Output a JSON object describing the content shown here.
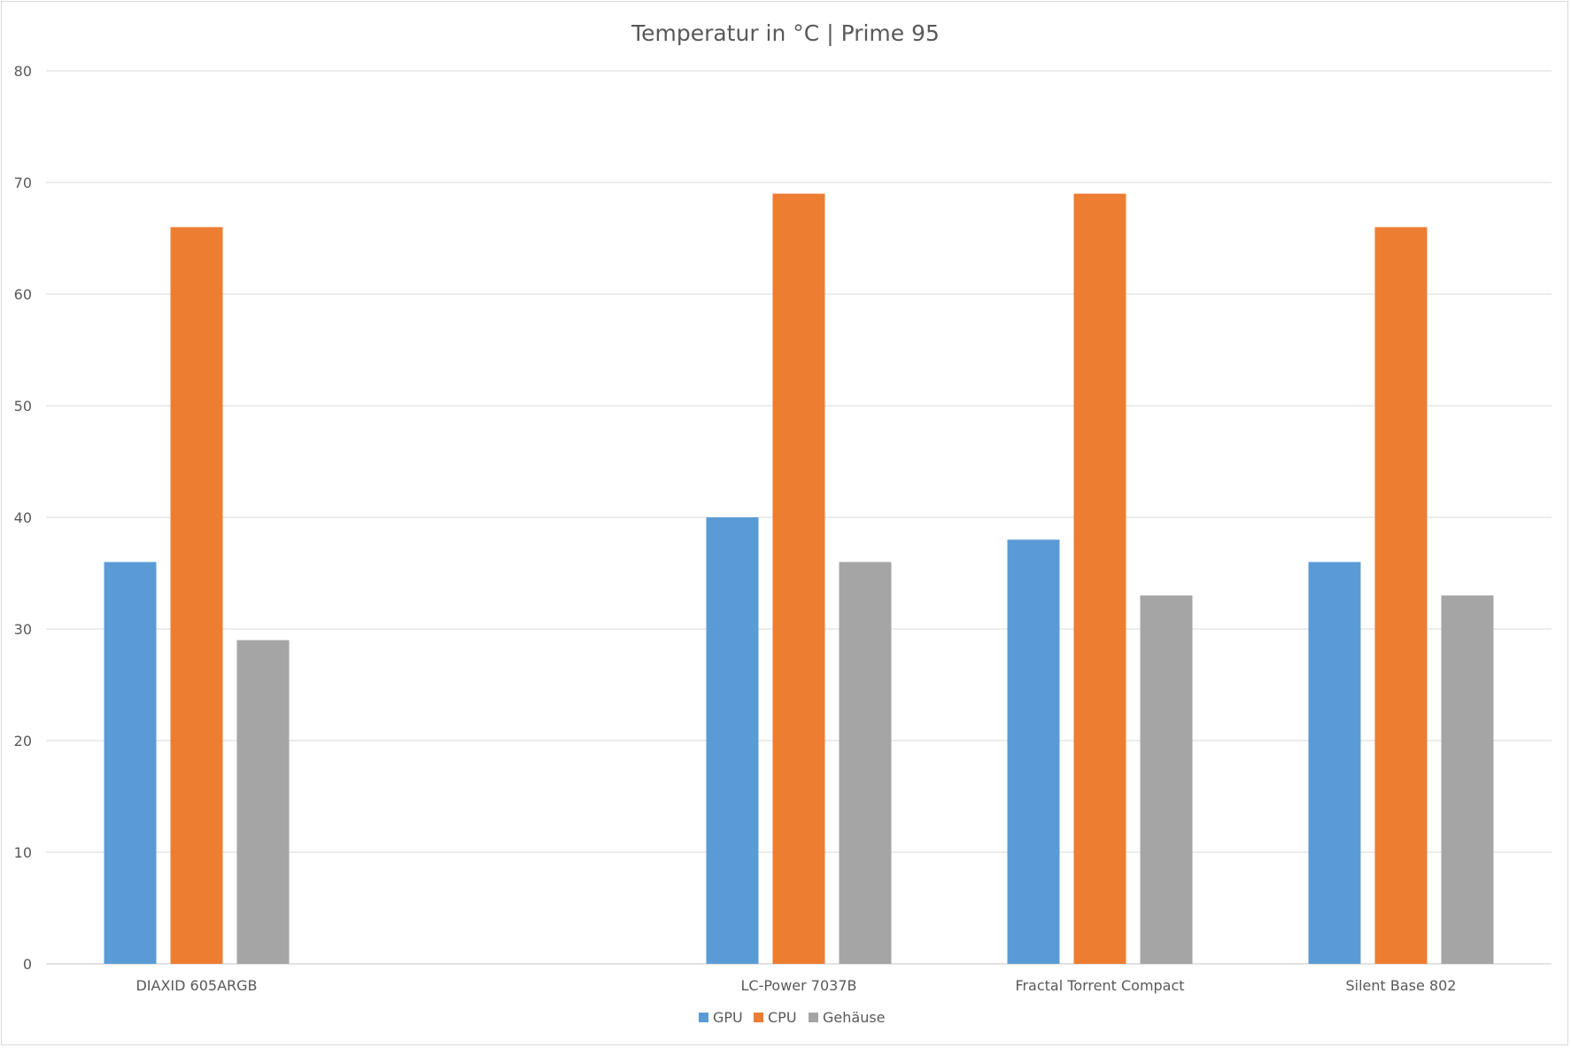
{
  "chart_data": {
    "type": "bar",
    "title": "Temperatur in °C | Prime 95",
    "xlabel": "",
    "ylabel": "",
    "categories": [
      "DIAXID 605ARGB",
      "",
      "LC-Power 7037B",
      "Fractal Torrent Compact",
      "Silent Base 802"
    ],
    "series": [
      {
        "name": "GPU",
        "color": "#5b9bd5",
        "values": [
          36,
          null,
          40,
          38,
          36
        ]
      },
      {
        "name": "CPU",
        "color": "#ed7d31",
        "values": [
          66,
          null,
          69,
          69,
          66
        ]
      },
      {
        "name": "Gehäuse",
        "color": "#a5a5a5",
        "values": [
          29,
          null,
          36,
          33,
          33
        ]
      }
    ],
    "ylim": [
      0,
      80
    ],
    "yticks": [
      0,
      10,
      20,
      30,
      40,
      50,
      60,
      70,
      80
    ],
    "grid": true,
    "legend": "bottom-center"
  }
}
